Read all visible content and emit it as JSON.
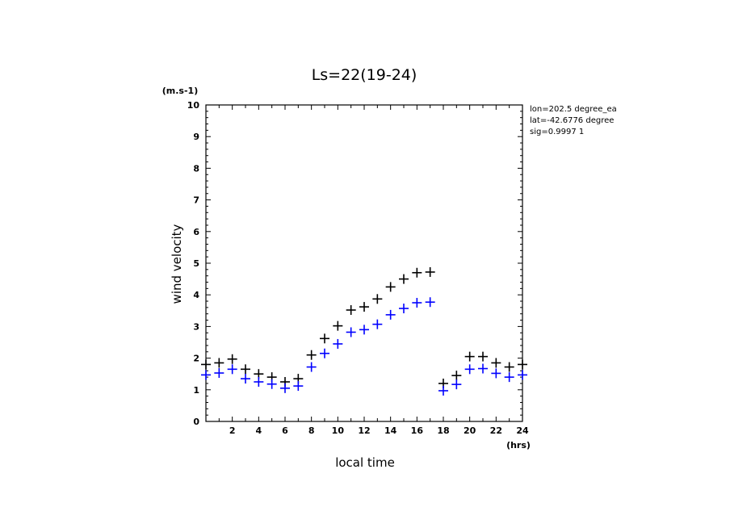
{
  "chart_data": {
    "type": "scatter",
    "title": "Ls=22(19-24)",
    "xlabel": "local time",
    "ylabel": "wind velocity",
    "x_unit": "(hrs)",
    "y_unit": "(m.s-1)",
    "xlim": [
      0,
      24
    ],
    "ylim": [
      0,
      10
    ],
    "x_tick_labels": [
      "2",
      "4",
      "6",
      "8",
      "10",
      "12",
      "14",
      "16",
      "18",
      "20",
      "22",
      "24"
    ],
    "y_tick_labels": [
      "0",
      "1",
      "2",
      "3",
      "4",
      "5",
      "6",
      "7",
      "8",
      "9",
      "10"
    ],
    "annotations": [
      "lon=202.5 degree_ea",
      "lat=-42.6776 degree",
      "sig=0.9997 1"
    ],
    "grid": false,
    "series": [
      {
        "color": "#000000",
        "marker": "+",
        "x": [
          0,
          1,
          2,
          3,
          4,
          5,
          6,
          7,
          8,
          9,
          10,
          11,
          12,
          13,
          14,
          15,
          16,
          17,
          18,
          19,
          20,
          21,
          22,
          23,
          24
        ],
        "y": [
          1.8,
          1.85,
          1.97,
          1.65,
          1.5,
          1.4,
          1.25,
          1.35,
          2.1,
          2.62,
          3.02,
          3.52,
          3.62,
          3.87,
          4.25,
          4.5,
          4.7,
          4.72,
          1.2,
          1.45,
          2.05,
          2.05,
          1.85,
          1.72,
          1.8
        ]
      },
      {
        "color": "#0000ff",
        "marker": "+",
        "x": [
          0,
          1,
          2,
          3,
          4,
          5,
          6,
          7,
          8,
          9,
          10,
          11,
          12,
          13,
          14,
          15,
          16,
          17,
          18,
          19,
          20,
          21,
          22,
          23,
          24
        ],
        "y": [
          1.47,
          1.53,
          1.65,
          1.35,
          1.25,
          1.18,
          1.05,
          1.12,
          1.72,
          2.15,
          2.45,
          2.82,
          2.9,
          3.07,
          3.37,
          3.57,
          3.75,
          3.77,
          0.97,
          1.17,
          1.65,
          1.67,
          1.52,
          1.4,
          1.47
        ]
      }
    ]
  }
}
